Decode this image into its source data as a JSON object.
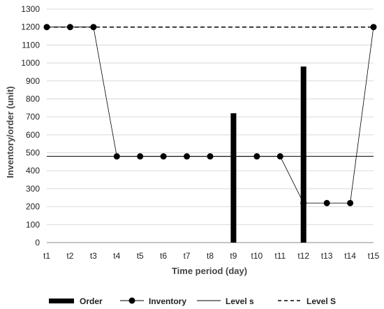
{
  "chart_data": {
    "type": "line",
    "title": "",
    "xlabel": "Time period (day)",
    "ylabel": "Inventory/order (unit)",
    "ylim": [
      0,
      1300
    ],
    "yticks": [
      0,
      100,
      200,
      300,
      400,
      500,
      600,
      700,
      800,
      900,
      1000,
      1100,
      1200,
      1300
    ],
    "grid": "horizontal",
    "legend_position": "bottom",
    "categories": [
      "t1",
      "t2",
      "t3",
      "t4",
      "t5",
      "t6",
      "t7",
      "t8",
      "t9",
      "t10",
      "t11",
      "t12",
      "t13",
      "t14",
      "t15"
    ],
    "series": [
      {
        "name": "Order",
        "kind": "bar",
        "color": "#000000",
        "values": [
          null,
          null,
          null,
          null,
          null,
          null,
          null,
          null,
          720,
          null,
          null,
          980,
          null,
          null,
          null
        ]
      },
      {
        "name": "Inventory",
        "kind": "line-markers",
        "color": "#000000",
        "values": [
          1200,
          1200,
          1200,
          480,
          480,
          480,
          480,
          480,
          null,
          480,
          480,
          220,
          220,
          220,
          1200
        ]
      },
      {
        "name": "Level s",
        "kind": "hline",
        "color": "#000000",
        "value": 480
      },
      {
        "name": "Level S",
        "kind": "hline-dashed",
        "color": "#000000",
        "value": 1200
      }
    ]
  }
}
